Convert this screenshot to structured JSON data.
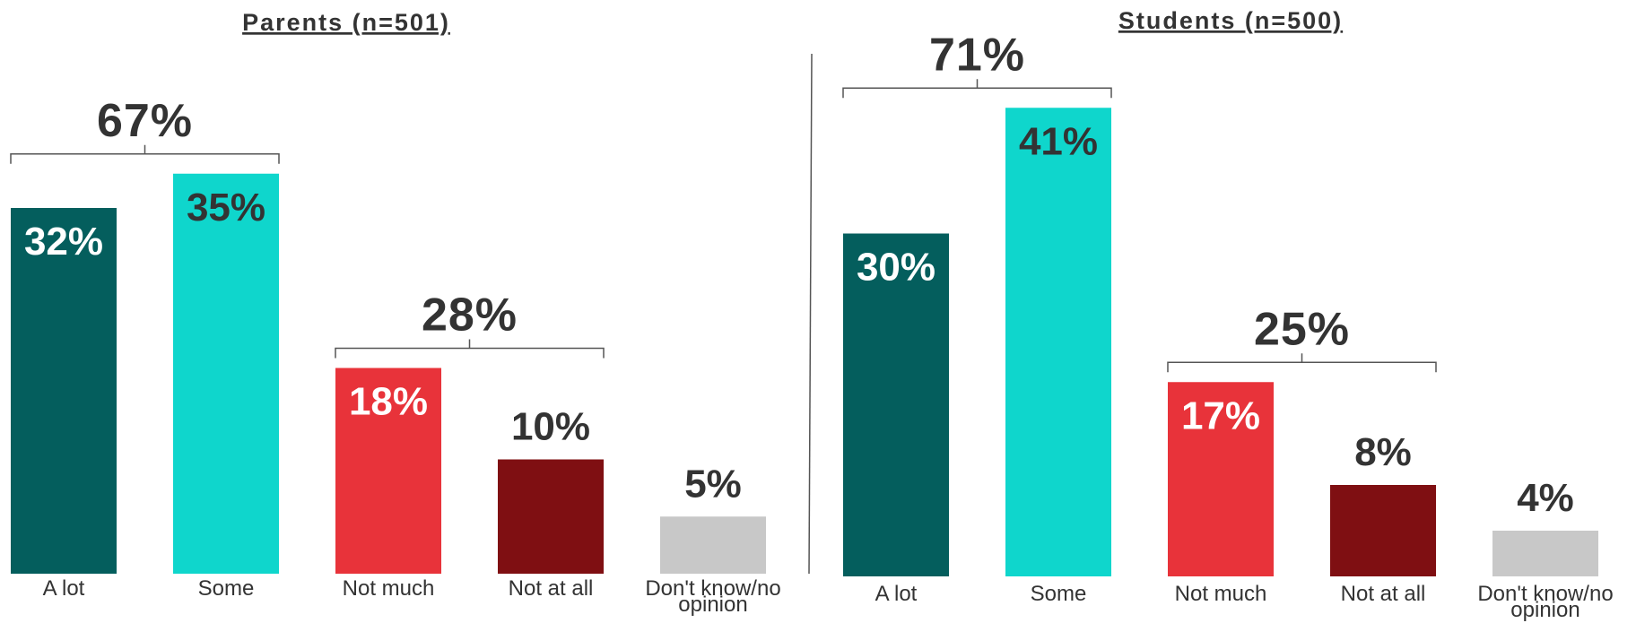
{
  "chart_data": [
    {
      "type": "bar",
      "title": "Parents (n=501)",
      "categories": [
        "A lot",
        "Some",
        "Not much",
        "Not at all",
        "Don't know/no opinion"
      ],
      "values": [
        32,
        35,
        18,
        10,
        5
      ],
      "value_labels": [
        "32%",
        "35%",
        "18%",
        "10%",
        "5%"
      ],
      "groups": [
        {
          "label": "67%",
          "value": 67,
          "members": [
            0,
            1
          ]
        },
        {
          "label": "28%",
          "value": 28,
          "members": [
            2,
            3
          ]
        }
      ],
      "xlabel": "",
      "ylabel": "",
      "ylim": [
        0,
        100
      ],
      "grid": false,
      "legend": "none"
    },
    {
      "type": "bar",
      "title": "Students (n=500)",
      "categories": [
        "A lot",
        "Some",
        "Not much",
        "Not at all",
        "Don't know/no opinion"
      ],
      "values": [
        30,
        41,
        17,
        8,
        4
      ],
      "value_labels": [
        "30%",
        "41%",
        "17%",
        "8%",
        "4%"
      ],
      "groups": [
        {
          "label": "71%",
          "value": 71,
          "members": [
            0,
            1
          ]
        },
        {
          "label": "25%",
          "value": 25,
          "members": [
            2,
            3
          ]
        }
      ],
      "xlabel": "",
      "ylabel": "",
      "ylim": [
        0,
        100
      ],
      "grid": false,
      "legend": "none"
    }
  ],
  "colors": {
    "bars": [
      "#045e5d",
      "#0fd6cc",
      "#e8333a",
      "#7f0f12",
      "#c8c8c8"
    ],
    "value_text": [
      "#ffffff",
      "#333333",
      "#ffffff",
      "#333333",
      "#333333"
    ],
    "value_text_outside": "#333333",
    "text": "#333333",
    "divider": "#555555"
  }
}
